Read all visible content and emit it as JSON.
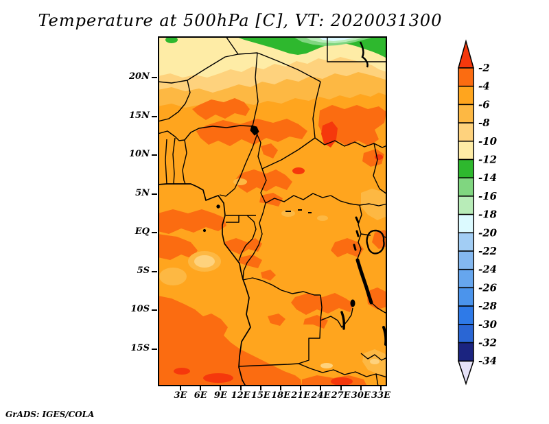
{
  "title": "Temperature at 500hPa [C], VT: 2020031300",
  "attribution": "GrADS: IGES/COLA",
  "axes": {
    "x_ticks": [
      "3E",
      "6E",
      "9E",
      "12E",
      "15E",
      "18E",
      "21E",
      "24E",
      "27E",
      "30E",
      "33E"
    ],
    "y_ticks": [
      "20N",
      "15N",
      "10N",
      "5N",
      "EQ",
      "5S",
      "10S",
      "15S"
    ]
  },
  "colorbar": {
    "labels": [
      "-2",
      "-4",
      "-6",
      "-8",
      "-10",
      "-12",
      "-14",
      "-16",
      "-18",
      "-20",
      "-22",
      "-24",
      "-26",
      "-28",
      "-30",
      "-32",
      "-34"
    ],
    "segment_colors": [
      "#fb6c11",
      "#ffa51e",
      "#fdb843",
      "#fed27d",
      "#feeca6",
      "#2eb82e",
      "#80d680",
      "#b8ecb8",
      "#dcfaff",
      "#a2cdf4",
      "#84b8f0",
      "#66a6ee",
      "#4b94ec",
      "#2e7ae8",
      "#2a66d4",
      "#1b2480"
    ],
    "above_color": "#f5380c",
    "below_color": "#e6e2f8",
    "outline_color": "#000000"
  },
  "chart_data": {
    "type": "heatmap",
    "subtype": "filled-contour-map",
    "title": "Temperature at 500hPa [C], VT: 2020031300",
    "variable": "Temperature at 500hPa",
    "units": "C",
    "valid_time": "2020031300",
    "x_tick_labels": [
      "3E",
      "6E",
      "9E",
      "12E",
      "15E",
      "18E",
      "21E",
      "24E",
      "27E",
      "30E",
      "33E"
    ],
    "y_tick_labels": [
      "20N",
      "15N",
      "10N",
      "5N",
      "EQ",
      "5S",
      "10S",
      "15S"
    ],
    "lon_range_deg_east": [
      0,
      34
    ],
    "lat_range_deg": [
      -20,
      25
    ],
    "contour_levels_c": [
      -34,
      -32,
      -30,
      -28,
      -26,
      -24,
      -22,
      -20,
      -18,
      -16,
      -14,
      -12,
      -10,
      -8,
      -6,
      -4,
      -2
    ],
    "legend_position": "right",
    "grid": false,
    "field_features": [
      {
        "region": "most of central Africa, 15N to 20S",
        "value_c": "-6 to -4"
      },
      {
        "region": "Sahel band 8N-15N, Sudan, Gulf of Guinea coast, Gabon/Congo, Zambia and 13S-20S band",
        "value_c": "-4 to -2"
      },
      {
        "region": "small cores in Sudan blob and along southern edge",
        "value_c": "warmer than -2"
      },
      {
        "region": "north of 15N, cooling northward",
        "value_c": "-8 to -12"
      },
      {
        "region": "northern edge near 24N",
        "value_c": "-12 to -16 (green band)"
      },
      {
        "region": "small pocket at top centre-right",
        "value_c": "-18 to -20 (pale blue)"
      },
      {
        "region": "scattered light patches near 6S/9E and east Africa",
        "value_c": "-6 to -10"
      }
    ],
    "attribution": "GrADS: IGES/COLA"
  }
}
